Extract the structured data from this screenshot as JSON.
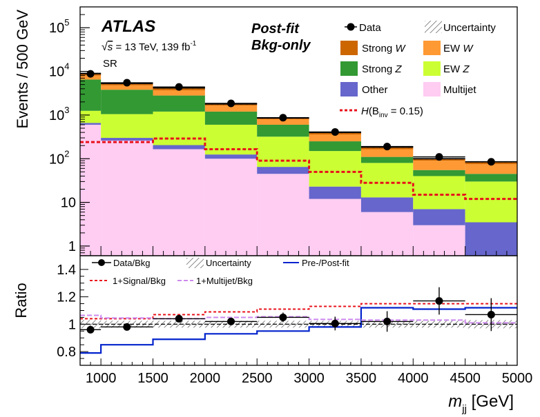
{
  "chart_data": [
    {
      "type": "bar",
      "stacked": true,
      "y_scale": "log",
      "ylabel": "Events / 500 GeV",
      "ylim": [
        0.6,
        300000
      ],
      "y_ticks": [
        {
          "value": 1,
          "label": "1",
          "exp": ""
        },
        {
          "value": 10,
          "label": "10",
          "exp": ""
        },
        {
          "value": 100,
          "label": "10",
          "exp": "2"
        },
        {
          "value": 1000,
          "label": "10",
          "exp": "3"
        },
        {
          "value": 10000,
          "label": "10",
          "exp": "4"
        },
        {
          "value": 100000,
          "label": "10",
          "exp": "5"
        }
      ],
      "x_edges": [
        800,
        1000,
        1500,
        2000,
        2500,
        3000,
        3500,
        4000,
        4500,
        5000
      ],
      "annotations": {
        "atlas": "ATLAS",
        "energy_sqrt": "√",
        "energy_s": "s",
        "energy_text": " = 13 TeV, 139 fb",
        "energy_sup": "-1",
        "region": "SR",
        "fit_line1": "Post-fit",
        "fit_line2": "Bkg-only"
      },
      "legend": {
        "data": "Data",
        "uncertainty": "Uncertainty",
        "strong_w_pre": "Strong ",
        "strong_w_it": "W",
        "ew_w_pre": "EW ",
        "ew_w_it": "W",
        "strong_z_pre": "Strong ",
        "strong_z_it": "Z",
        "ew_z_pre": "EW ",
        "ew_z_it": "Z",
        "other": "Other",
        "multijet": "Multijet",
        "signal_h": "H",
        "signal_open": "(B",
        "signal_sub": "inv",
        "signal_close": " = 0.15)"
      },
      "colors": {
        "multijet": "#ffccf2",
        "other": "#6666cc",
        "ew_z": "#ccff33",
        "strong_z": "#339933",
        "ew_w": "#ff9933",
        "strong_w": "#cc6600",
        "signal": "#e8101a",
        "data": "#000000"
      },
      "stack_order": [
        "multijet",
        "other",
        "ew_z",
        "strong_z",
        "ew_w",
        "strong_w"
      ],
      "stack_tops": {
        "multijet": [
          600,
          260,
          165,
          100,
          45,
          12,
          6,
          3,
          0.6
        ],
        "other": [
          660,
          300,
          205,
          125,
          65,
          23,
          13,
          7,
          3.5
        ],
        "ew_z": [
          1250,
          1050,
          1200,
          600,
          320,
          150,
          80,
          40,
          30
        ],
        "strong_z": [
          6500,
          3800,
          2800,
          1200,
          600,
          250,
          110,
          55,
          45
        ],
        "ew_w": [
          8000,
          4800,
          3700,
          1650,
          800,
          360,
          165,
          90,
          75
        ],
        "strong_w": [
          9000,
          5300,
          4200,
          1800,
          860,
          400,
          185,
          100,
          85
        ]
      },
      "signal_values": [
        240,
        240,
        290,
        165,
        90,
        50,
        28,
        15,
        12
      ],
      "data_points": {
        "x": [
          900,
          1250,
          1750,
          2250,
          2750,
          3250,
          3750,
          4250,
          4750
        ],
        "y": [
          8800,
          5500,
          4400,
          1850,
          870,
          410,
          190,
          110,
          85
        ]
      }
    },
    {
      "type": "line",
      "ylabel": "Ratio",
      "xlabel_main": "m",
      "xlabel_sub": "jj",
      "xlabel_unit": " [GeV]",
      "xlim": [
        800,
        5000
      ],
      "ylim": [
        0.7,
        1.5
      ],
      "x_ticks": [
        1000,
        1500,
        2000,
        2500,
        3000,
        3500,
        4000,
        4500,
        5000
      ],
      "y_ticks": [
        {
          "value": 0.8,
          "label": "0.8"
        },
        {
          "value": 1.0,
          "label": "1"
        },
        {
          "value": 1.2,
          "label": "1.2"
        },
        {
          "value": 1.4,
          "label": "1.4"
        }
      ],
      "legend": {
        "data_bkg": "Data/Bkg",
        "uncertainty": "Uncertainty",
        "prepost": "Pre-/Post-fit",
        "signal_bkg": "1+Signal/Bkg",
        "multijet_bkg": "1+Multijet/Bkg"
      },
      "colors": {
        "prepost": "#0022cc",
        "signal": "#e8101a",
        "multijet": "#cc88ee"
      },
      "uncertainty_half_width": [
        0.03,
        0.025,
        0.025,
        0.025,
        0.025,
        0.025,
        0.025,
        0.025,
        0.03
      ],
      "series": [
        {
          "name": "Pre-/Post-fit",
          "values": [
            0.79,
            0.85,
            0.89,
            0.93,
            0.95,
            0.98,
            1.12,
            1.11,
            1.12
          ]
        },
        {
          "name": "1+Signal/Bkg",
          "values": [
            1.04,
            1.04,
            1.07,
            1.09,
            1.11,
            1.13,
            1.15,
            1.15,
            1.15
          ]
        },
        {
          "name": "1+Multijet/Bkg",
          "values": [
            1.065,
            1.045,
            1.04,
            1.05,
            1.055,
            1.035,
            1.03,
            1.03,
            1.01
          ]
        }
      ],
      "data_points": {
        "x": [
          900,
          1250,
          1750,
          2250,
          2750,
          3250,
          3750,
          4250,
          4750
        ],
        "y": [
          0.96,
          0.98,
          1.04,
          1.02,
          1.05,
          1.005,
          1.02,
          1.17,
          1.07
        ],
        "yerr": [
          0.015,
          0.015,
          0.02,
          0.025,
          0.035,
          0.05,
          0.075,
          0.1,
          0.12
        ]
      }
    }
  ]
}
